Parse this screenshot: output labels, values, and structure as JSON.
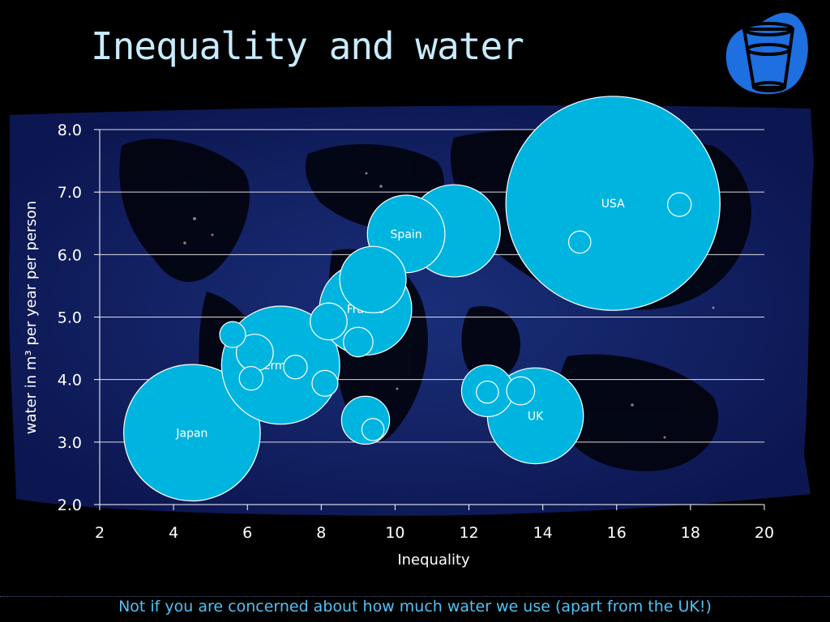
{
  "slide": {
    "title": "Inequality and water",
    "footer": "Not if you are concerned about how much water we use (apart from the UK!)",
    "icon": "water-glass-icon"
  },
  "colors": {
    "background": "#000000",
    "title": "#c8ecff",
    "bubble": "#00b4e0",
    "icon_blob": "#1e6fe0",
    "footer": "#4fc3f7"
  },
  "chart_data": {
    "type": "scatter",
    "title": "",
    "xlabel": "Inequality",
    "ylabel": "water in m³ per year per person",
    "xlim": [
      2,
      20
    ],
    "ylim": [
      2.0,
      8.0
    ],
    "x_ticks": [
      "2",
      "4",
      "6",
      "8",
      "10",
      "12",
      "14",
      "16",
      "18",
      "20"
    ],
    "y_ticks": [
      "2.0",
      "3.0",
      "4.0",
      "5.0",
      "6.0",
      "7.0",
      "8.0"
    ],
    "grid": "horizontal",
    "background": "world map cartogram",
    "points": [
      {
        "x": 4.5,
        "y": 3.15,
        "size": 18.5,
        "label": "Japan"
      },
      {
        "x": 5.6,
        "y": 4.72,
        "size": 3.5,
        "label": ""
      },
      {
        "x": 6.1,
        "y": 4.02,
        "size": 3.2,
        "label": ""
      },
      {
        "x": 6.2,
        "y": 4.43,
        "size": 5.0,
        "label": ""
      },
      {
        "x": 6.9,
        "y": 4.23,
        "size": 16.0,
        "label": "Germany"
      },
      {
        "x": 7.3,
        "y": 4.2,
        "size": 3.2,
        "label": ""
      },
      {
        "x": 8.1,
        "y": 3.94,
        "size": 3.5,
        "label": ""
      },
      {
        "x": 8.2,
        "y": 4.93,
        "size": 5.0,
        "label": ""
      },
      {
        "x": 9.0,
        "y": 4.6,
        "size": 4.0,
        "label": ""
      },
      {
        "x": 9.2,
        "y": 3.35,
        "size": 6.5,
        "label": ""
      },
      {
        "x": 9.4,
        "y": 3.2,
        "size": 3.0,
        "label": ""
      },
      {
        "x": 9.4,
        "y": 5.6,
        "size": 9.0,
        "label": ""
      },
      {
        "x": 9.2,
        "y": 5.13,
        "size": 12.5,
        "label": "France"
      },
      {
        "x": 10.3,
        "y": 6.33,
        "size": 10.5,
        "label": "Spain"
      },
      {
        "x": 11.6,
        "y": 6.38,
        "size": 12.5,
        "label": ""
      },
      {
        "x": 12.5,
        "y": 3.82,
        "size": 7.0,
        "label": ""
      },
      {
        "x": 12.5,
        "y": 3.8,
        "size": 3.0,
        "label": ""
      },
      {
        "x": 13.4,
        "y": 3.82,
        "size": 3.8,
        "label": ""
      },
      {
        "x": 13.8,
        "y": 3.42,
        "size": 13.0,
        "label": "UK"
      },
      {
        "x": 15.0,
        "y": 6.2,
        "size": 3.0,
        "label": ""
      },
      {
        "x": 15.9,
        "y": 6.82,
        "size": 29.0,
        "label": "USA"
      },
      {
        "x": 17.7,
        "y": 6.8,
        "size": 3.2,
        "label": ""
      }
    ]
  }
}
